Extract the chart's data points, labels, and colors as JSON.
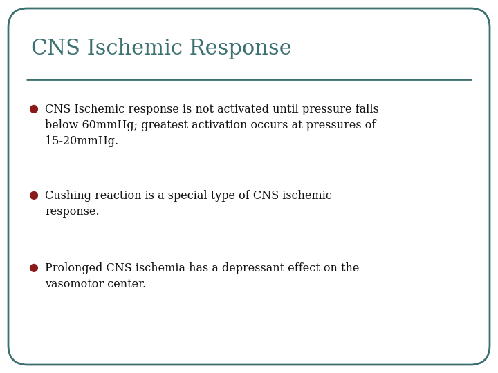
{
  "title": "CNS Ischemic Response",
  "title_color": "#3d7070",
  "title_fontsize": 22,
  "title_font": "DejaVu Serif",
  "background_color": "#ffffff",
  "border_color": "#3d7070",
  "border_linewidth": 2.0,
  "line_color": "#3d7070",
  "bullet_color": "#8b1a1a",
  "bullet_fontsize": 11.5,
  "text_color": "#111111",
  "text_font": "DejaVu Serif",
  "bullets": [
    "CNS Ischemic response is not activated until pressure falls\nbelow 60mmHg; greatest activation occurs at pressures of\n15-20mmHg.",
    "Cushing reaction is a special type of CNS ischemic\nresponse.",
    "Prolonged CNS ischemia has a depressant effect on the\nvasomotor center."
  ],
  "figsize": [
    7.2,
    5.4
  ],
  "dpi": 100
}
